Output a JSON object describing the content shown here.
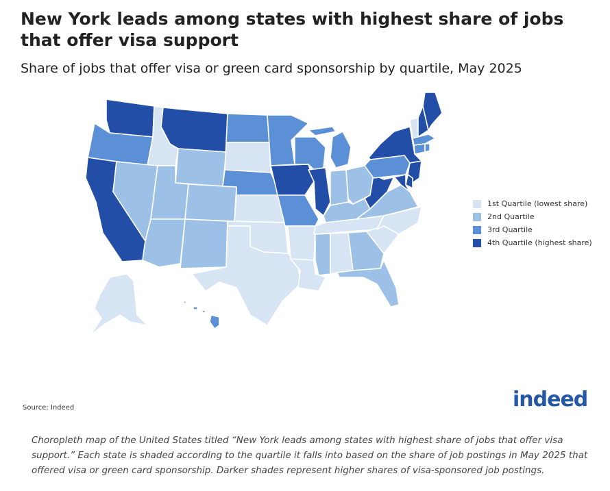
{
  "header": {
    "title": "New York leads among states with highest share of jobs that offer visa support",
    "subtitle": "Share of jobs that offer visa or green card sponsorship by quartile, May 2025"
  },
  "legend": {
    "items": [
      {
        "label": "1st Quartile (lowest share)",
        "color": "#d6e4f3"
      },
      {
        "label": "2nd Quartile",
        "color": "#9dc1e6"
      },
      {
        "label": "3rd Quartile",
        "color": "#5b8fd6"
      },
      {
        "label": "4th Quartile (highest share)",
        "color": "#234ea7"
      }
    ]
  },
  "quartiles": {
    "WA": 4,
    "OR": 3,
    "CA": 4,
    "ID": 1,
    "NV": 2,
    "MT": 4,
    "WY": 2,
    "UT": 2,
    "AZ": 2,
    "CO": 2,
    "NM": 2,
    "ND": 3,
    "SD": 1,
    "NE": 3,
    "KS": 1,
    "OK": 1,
    "TX": 1,
    "MN": 3,
    "IA": 4,
    "MO": 3,
    "AR": 1,
    "LA": 1,
    "WI": 3,
    "IL": 4,
    "MI": 3,
    "IN": 2,
    "OH": 2,
    "KY": 2,
    "TN": 1,
    "MS": 2,
    "AL": 1,
    "GA": 2,
    "FL": 2,
    "SC": 1,
    "NC": 1,
    "VA": 2,
    "WV": 4,
    "PA": 3,
    "NY": 4,
    "VT": 1,
    "NH": 4,
    "ME": 4,
    "MA": 3,
    "CT": 3,
    "RI": 3,
    "NJ": 4,
    "DE": 4,
    "MD": 4,
    "AK": 1,
    "HI": 3
  },
  "footer": {
    "source": "Source: Indeed",
    "logo_text": "indeed"
  },
  "caption": "Choropleth map of the United States titled “New York leads among states with highest share of jobs that offer visa support.” Each state is shaded according to the quartile it falls into based on the share of job postings in May 2025 that offered visa or green card sponsorship. Darker shades represent higher shares of visa-sponsored job postings."
}
